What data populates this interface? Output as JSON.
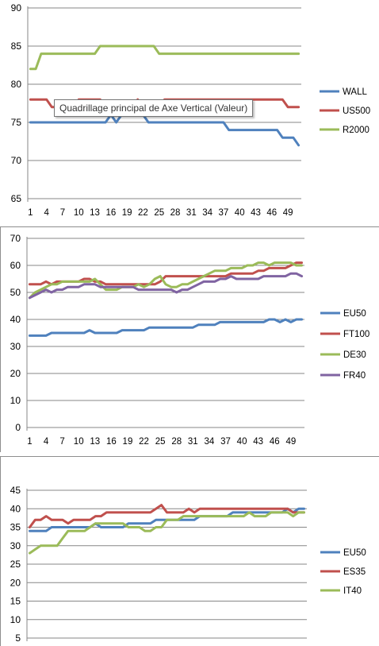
{
  "chart_data": [
    {
      "type": "line",
      "ylim": [
        65,
        90
      ],
      "yticks": [
        65,
        70,
        75,
        80,
        85,
        90
      ],
      "xticks": [
        1,
        4,
        7,
        10,
        13,
        16,
        19,
        22,
        25,
        28,
        31,
        34,
        37,
        40,
        43,
        46,
        49
      ],
      "x_count": 51,
      "grid": true,
      "legend": "right",
      "series": [
        {
          "name": "WALL",
          "color": "#4f81bd",
          "values": [
            75,
            75,
            75,
            75,
            75,
            75,
            75,
            75,
            75,
            75,
            75,
            75,
            75,
            75,
            75,
            76,
            75,
            76,
            76,
            76,
            76,
            76,
            75,
            75,
            75,
            75,
            75,
            75,
            75,
            75,
            75,
            75,
            75,
            75,
            75,
            75,
            75,
            74,
            74,
            74,
            74,
            74,
            74,
            74,
            74,
            74,
            74,
            73,
            73,
            73,
            72
          ]
        },
        {
          "name": "US500",
          "color": "#c0504d",
          "values": [
            78,
            78,
            78,
            78,
            77,
            77,
            77,
            77,
            77,
            78,
            78,
            78,
            78,
            78,
            77,
            77,
            77,
            77,
            77,
            77,
            78,
            77,
            77,
            77,
            77,
            78,
            78,
            78,
            78,
            78,
            78,
            78,
            78,
            78,
            78,
            78,
            78,
            78,
            78,
            78,
            78,
            78,
            78,
            78,
            78,
            78,
            78,
            78,
            77,
            77,
            77
          ]
        },
        {
          "name": "R2000",
          "color": "#9bbb59",
          "values": [
            82,
            82,
            84,
            84,
            84,
            84,
            84,
            84,
            84,
            84,
            84,
            84,
            84,
            85,
            85,
            85,
            85,
            85,
            85,
            85,
            85,
            85,
            85,
            85,
            84,
            84,
            84,
            84,
            84,
            84,
            84,
            84,
            84,
            84,
            84,
            84,
            84,
            84,
            84,
            84,
            84,
            84,
            84,
            84,
            84,
            84,
            84,
            84,
            84,
            84,
            84
          ]
        }
      ],
      "tooltip": "Quadrillage principal de Axe Vertical (Valeur)"
    },
    {
      "type": "line",
      "ylim": [
        0,
        70
      ],
      "yticks": [
        0,
        10,
        20,
        30,
        40,
        50,
        60,
        70
      ],
      "xticks": [
        1,
        4,
        7,
        10,
        13,
        16,
        19,
        22,
        25,
        28,
        31,
        34,
        37,
        40,
        43,
        46,
        49
      ],
      "x_count": 51,
      "grid": true,
      "legend": "right",
      "series": [
        {
          "name": "EU50",
          "color": "#4f81bd",
          "values": [
            34,
            34,
            34,
            34,
            35,
            35,
            35,
            35,
            35,
            35,
            35,
            36,
            35,
            35,
            35,
            35,
            35,
            36,
            36,
            36,
            36,
            36,
            37,
            37,
            37,
            37,
            37,
            37,
            37,
            37,
            37,
            38,
            38,
            38,
            38,
            39,
            39,
            39,
            39,
            39,
            39,
            39,
            39,
            39,
            40,
            40,
            39,
            40,
            39,
            40,
            40
          ]
        },
        {
          "name": "FT100",
          "color": "#c0504d",
          "values": [
            53,
            53,
            53,
            54,
            53,
            54,
            54,
            54,
            54,
            54,
            55,
            55,
            54,
            54,
            53,
            53,
            53,
            53,
            53,
            53,
            53,
            53,
            53,
            53,
            54,
            56,
            56,
            56,
            56,
            56,
            56,
            56,
            56,
            56,
            56,
            56,
            56,
            57,
            57,
            57,
            57,
            57,
            58,
            58,
            59,
            59,
            59,
            59,
            60,
            61,
            61
          ]
        },
        {
          "name": "DE30",
          "color": "#9bbb59",
          "values": [
            48,
            50,
            51,
            52,
            53,
            53,
            54,
            54,
            54,
            54,
            54,
            54,
            55,
            53,
            51,
            51,
            51,
            52,
            52,
            52,
            53,
            52,
            53,
            55,
            56,
            53,
            52,
            52,
            53,
            53,
            54,
            55,
            56,
            57,
            58,
            58,
            58,
            59,
            59,
            59,
            60,
            60,
            61,
            61,
            60,
            61,
            61,
            61,
            61,
            60,
            60
          ]
        },
        {
          "name": "FR40",
          "color": "#8064a2",
          "values": [
            48,
            49,
            50,
            51,
            50,
            51,
            51,
            52,
            52,
            52,
            53,
            53,
            53,
            52,
            52,
            52,
            52,
            52,
            52,
            52,
            51,
            51,
            51,
            51,
            51,
            51,
            51,
            50,
            51,
            51,
            52,
            53,
            54,
            54,
            54,
            55,
            55,
            56,
            55,
            55,
            55,
            55,
            55,
            56,
            56,
            56,
            56,
            56,
            57,
            57,
            56
          ]
        }
      ]
    },
    {
      "type": "line",
      "ylim": [
        5,
        45
      ],
      "yticks": [
        5,
        10,
        15,
        20,
        25,
        30,
        35,
        40,
        45
      ],
      "x_count": 51,
      "grid": true,
      "legend": "right",
      "series": [
        {
          "name": "EU50",
          "color": "#4f81bd",
          "values": [
            34,
            34,
            34,
            34,
            35,
            35,
            35,
            35,
            35,
            35,
            35,
            35,
            36,
            35,
            35,
            35,
            35,
            35,
            36,
            36,
            36,
            36,
            36,
            37,
            37,
            37,
            37,
            37,
            37,
            37,
            37,
            38,
            38,
            38,
            38,
            38,
            38,
            39,
            39,
            39,
            39,
            39,
            39,
            39,
            39,
            39,
            39,
            40,
            39,
            40,
            40
          ]
        },
        {
          "name": "ES35",
          "color": "#c0504d",
          "values": [
            35,
            37,
            37,
            38,
            37,
            37,
            37,
            36,
            37,
            37,
            37,
            37,
            38,
            38,
            39,
            39,
            39,
            39,
            39,
            39,
            39,
            39,
            39,
            40,
            41,
            39,
            39,
            39,
            39,
            40,
            39,
            40,
            40,
            40,
            40,
            40,
            40,
            40,
            40,
            40,
            40,
            40,
            40,
            40,
            40,
            40,
            40,
            40,
            39,
            39,
            39
          ]
        },
        {
          "name": "IT40",
          "color": "#9bbb59",
          "values": [
            28,
            29,
            30,
            30,
            30,
            30,
            32,
            34,
            34,
            34,
            34,
            35,
            36,
            36,
            36,
            36,
            36,
            36,
            35,
            35,
            35,
            34,
            34,
            35,
            35,
            37,
            37,
            37,
            38,
            38,
            38,
            38,
            38,
            38,
            38,
            38,
            38,
            38,
            38,
            38,
            39,
            38,
            38,
            38,
            39,
            39,
            39,
            39,
            38,
            39,
            39
          ]
        }
      ]
    }
  ]
}
